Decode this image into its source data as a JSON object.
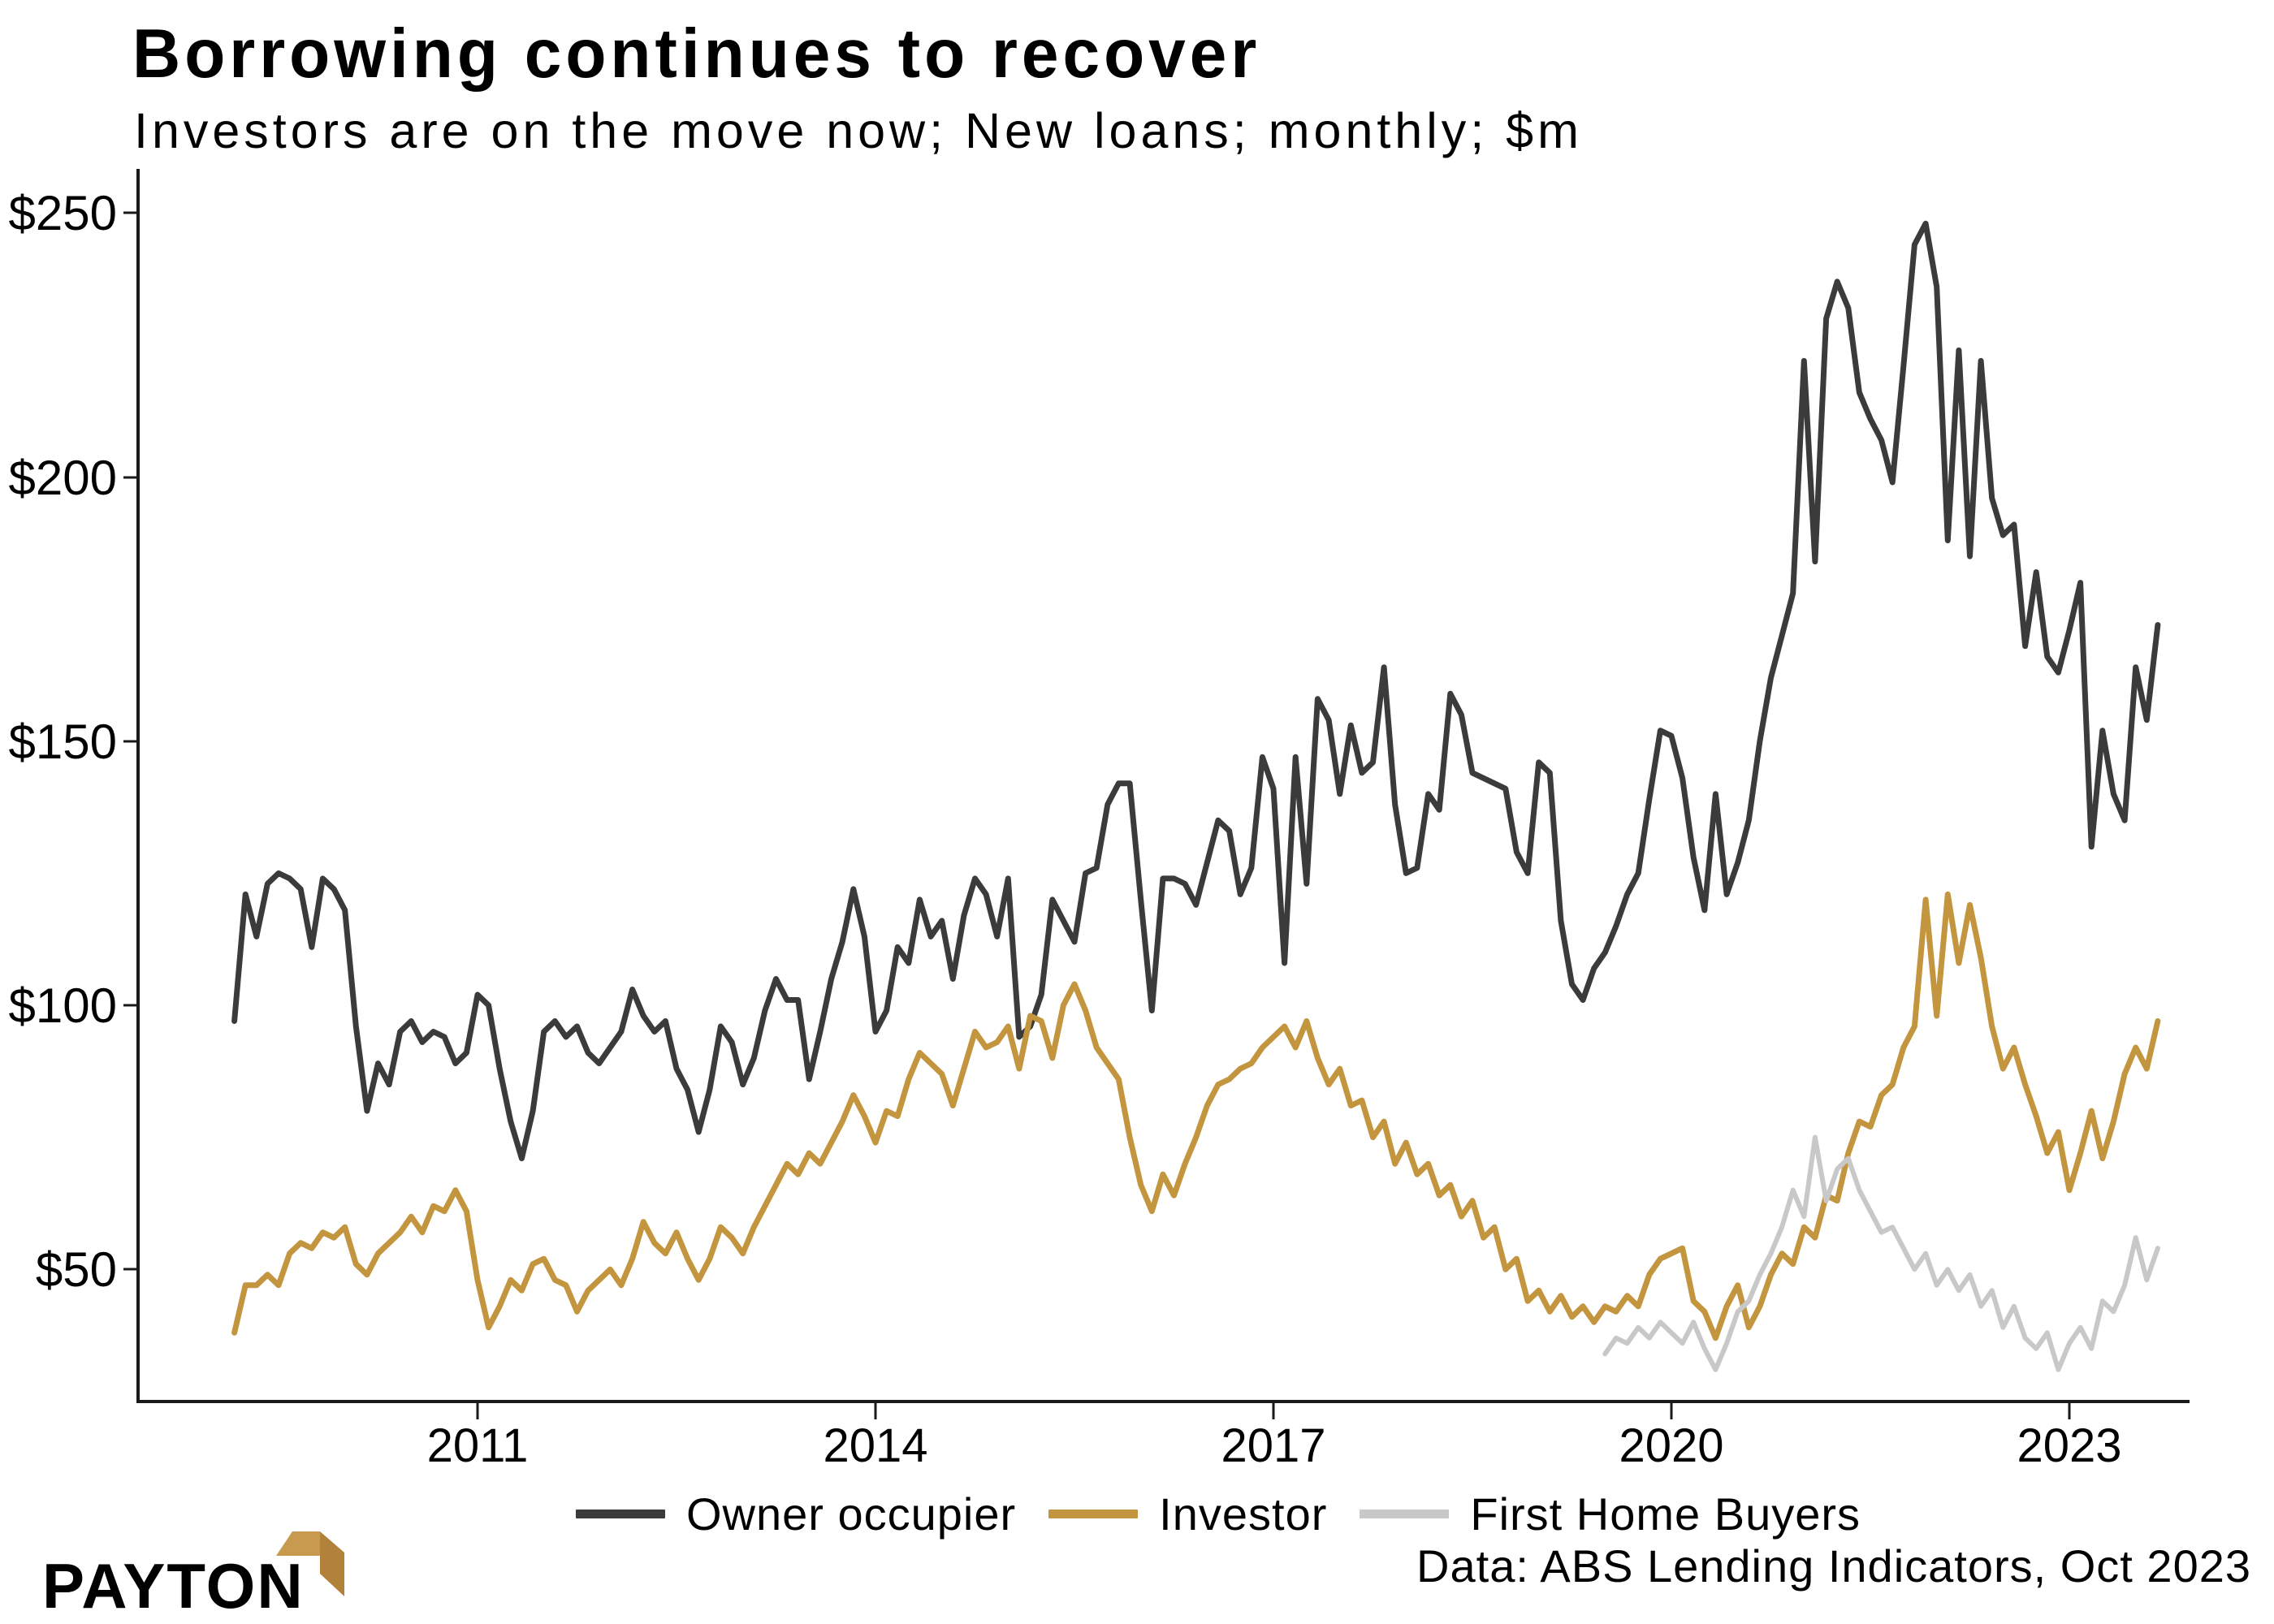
{
  "header": {
    "title": "Borrowing continues to recover",
    "subtitle": "Investors are on the move now; New loans; monthly; $m"
  },
  "chart_data": {
    "type": "line",
    "title": "Borrowing continues to recover",
    "subtitle": "Investors are on the move now; New loans; monthly; $m",
    "unit": "$m",
    "frequency": "monthly",
    "grid": false,
    "legend_position": "bottom",
    "y_axis": {
      "labels": [
        "$250",
        "$200",
        "$150",
        "$100",
        "$50"
      ],
      "values": [
        250,
        200,
        150,
        100,
        50
      ],
      "range_note": "values approximate, read from chart"
    },
    "x_axis": {
      "labels": [
        "2011",
        "2014",
        "2017",
        "2020",
        "2023"
      ],
      "years": [
        2011,
        2014,
        2017,
        2020,
        2023
      ]
    },
    "series": [
      {
        "name": "Owner occupier",
        "color": "#3b3b3b",
        "stroke_width": 7,
        "start": "2009-03",
        "values": [
          97,
          121,
          113,
          123,
          125,
          124,
          122,
          111,
          124,
          122,
          118,
          96,
          80,
          89,
          85,
          95,
          97,
          93,
          95,
          94,
          89,
          91,
          102,
          100,
          88,
          78,
          71,
          80,
          95,
          97,
          94,
          96,
          91,
          89,
          92,
          95,
          103,
          98,
          95,
          97,
          88,
          84,
          76,
          84,
          96,
          93,
          85,
          90,
          99,
          105,
          101,
          101,
          86,
          95,
          105,
          112,
          122,
          113,
          95,
          99,
          111,
          108,
          120,
          113,
          116,
          105,
          117,
          124,
          121,
          113,
          124,
          94,
          96,
          102,
          120,
          116,
          112,
          125,
          126,
          138,
          142,
          142,
          120,
          99,
          124,
          124,
          123,
          119,
          127,
          135,
          133,
          121,
          126,
          147,
          141,
          108,
          147,
          123,
          158,
          154,
          140,
          153,
          144,
          146,
          164,
          138,
          125,
          126,
          140,
          137,
          159,
          155,
          144,
          143,
          142,
          141,
          129,
          125,
          146,
          144,
          116,
          104,
          101,
          107,
          110,
          115,
          121,
          125,
          139,
          152,
          151,
          143,
          128,
          118,
          140,
          121,
          127,
          135,
          150,
          162,
          170,
          178,
          222,
          184,
          230,
          237,
          232,
          216,
          211,
          207,
          199,
          221,
          244,
          248,
          236,
          188,
          224,
          185,
          222,
          196,
          189,
          191,
          168,
          182,
          166,
          163,
          171,
          180,
          130,
          152,
          140,
          135,
          164,
          154,
          172
        ]
      },
      {
        "name": "Investor",
        "color": "#c3953f",
        "stroke_width": 7,
        "start": "2009-03",
        "values": [
          38,
          47,
          47,
          49,
          47,
          53,
          55,
          54,
          57,
          56,
          58,
          51,
          49,
          53,
          55,
          57,
          60,
          57,
          62,
          61,
          65,
          61,
          48,
          39,
          43,
          48,
          46,
          51,
          52,
          48,
          47,
          42,
          46,
          48,
          50,
          47,
          52,
          59,
          55,
          53,
          57,
          52,
          48,
          52,
          58,
          56,
          53,
          58,
          62,
          66,
          70,
          68,
          72,
          70,
          74,
          78,
          83,
          79,
          74,
          80,
          79,
          86,
          91,
          89,
          87,
          81,
          88,
          95,
          92,
          93,
          96,
          88,
          98,
          97,
          90,
          100,
          104,
          99,
          92,
          89,
          86,
          75,
          66,
          61,
          68,
          64,
          70,
          75,
          81,
          85,
          86,
          88,
          89,
          92,
          94,
          96,
          92,
          97,
          90,
          85,
          88,
          81,
          82,
          75,
          78,
          70,
          74,
          68,
          70,
          64,
          66,
          60,
          63,
          56,
          58,
          50,
          52,
          44,
          46,
          42,
          45,
          41,
          43,
          40,
          43,
          42,
          45,
          43,
          49,
          52,
          53,
          54,
          44,
          42,
          37,
          43,
          47,
          39,
          43,
          49,
          53,
          51,
          58,
          56,
          64,
          63,
          72,
          78,
          77,
          83,
          85,
          92,
          96,
          120,
          98,
          121,
          108,
          119,
          109,
          96,
          88,
          92,
          85,
          79,
          72,
          76,
          65,
          72,
          80,
          71,
          78,
          87,
          92,
          88,
          97
        ]
      },
      {
        "name": "First Home Buyers",
        "color": "#c8c8c8",
        "stroke_width": 6,
        "start": "2019-07",
        "values": [
          34,
          37,
          36,
          39,
          37,
          40,
          38,
          36,
          40,
          35,
          31,
          36,
          42,
          44,
          49,
          53,
          58,
          65,
          60,
          75,
          63,
          69,
          71,
          65,
          61,
          57,
          58,
          54,
          50,
          53,
          47,
          50,
          46,
          49,
          43,
          46,
          39,
          43,
          37,
          35,
          38,
          31,
          36,
          39,
          35,
          44,
          42,
          47,
          56,
          48,
          54
        ]
      }
    ],
    "source": "Data: ABS Lending Indicators, Oct 2023"
  },
  "branding": {
    "logo_text": "PAYTON",
    "logo_gold_light": "#c89a4f",
    "logo_gold_dark": "#b3823a"
  }
}
